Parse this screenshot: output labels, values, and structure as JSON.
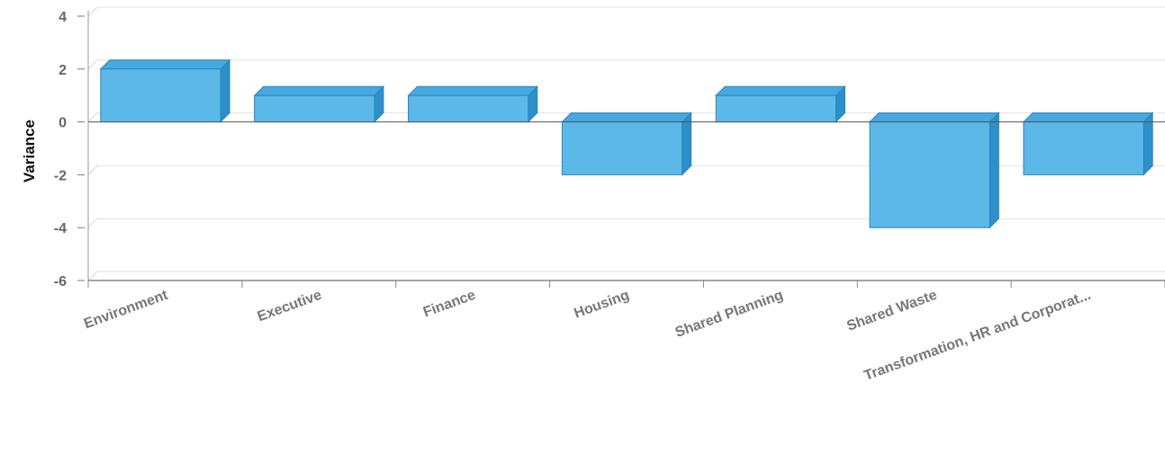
{
  "chart_data": {
    "type": "bar",
    "style": "3d",
    "categories": [
      "Environment",
      "Executive",
      "Finance",
      "Housing",
      "Shared Planning",
      "Shared Waste",
      "Transformation, HR and Corporat..."
    ],
    "values": [
      2,
      1,
      1,
      -2,
      1,
      -4,
      -2
    ],
    "title": "",
    "xlabel": "",
    "ylabel": "Variance",
    "ylim": [
      -6,
      4
    ],
    "yticks": [
      4,
      2,
      0,
      -2,
      -4,
      -6
    ],
    "grid": true,
    "legend": "none",
    "bar_color": "#5bb8e8",
    "bar_top_color": "#46a8df",
    "bar_side_color": "#2f8fc8",
    "bar_edge_color": "#2a86bf"
  }
}
